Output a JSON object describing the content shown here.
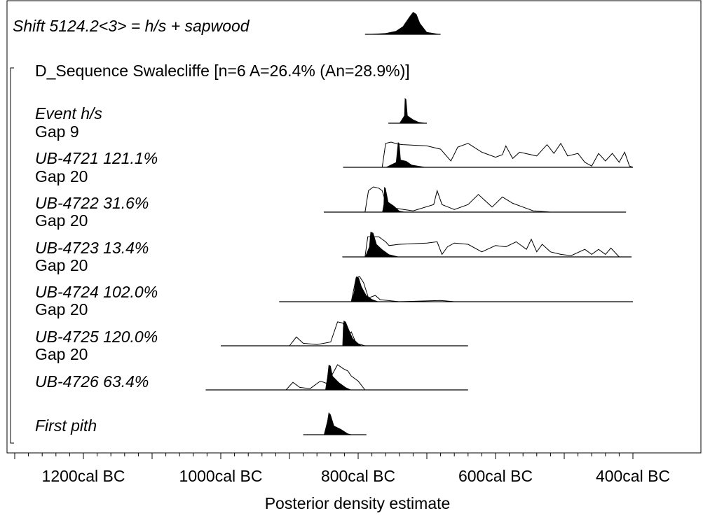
{
  "chart_data": {
    "type": "area",
    "title": "",
    "xlabel": "Posterior density estimate",
    "x_tick_labels": [
      "1200cal BC",
      "1000cal BC",
      "800cal BC",
      "600cal BC",
      "400cal BC"
    ],
    "x_ticks": [
      1200,
      1000,
      800,
      600,
      400
    ],
    "xlim": [
      1300,
      390
    ],
    "top_item": {
      "label": "Shift 5124.2<3> = h/s + sapwood",
      "italic": true,
      "posterior": [
        [
          680,
          0
        ],
        [
          700,
          0.1
        ],
        [
          710,
          0.5
        ],
        [
          715,
          0.9
        ],
        [
          720,
          1
        ],
        [
          725,
          0.8
        ],
        [
          735,
          0.35
        ],
        [
          745,
          0.15
        ],
        [
          760,
          0.05
        ],
        [
          790,
          0
        ]
      ]
    },
    "sequence_label": "D_Sequence Swalecliffe [n=6  A=26.4% (An=28.9%)]",
    "items": [
      {
        "label": "Event h/s",
        "italic": true,
        "gap": "Gap 9",
        "prior": null,
        "posterior": [
          [
            740,
            0
          ],
          [
            733,
            0.3
          ],
          [
            732,
            1
          ],
          [
            730,
            0.95
          ],
          [
            728,
            0.3
          ],
          [
            720,
            0.15
          ],
          [
            712,
            0.05
          ],
          [
            700,
            0
          ]
        ]
      },
      {
        "label": "UB-4721  121.1%",
        "italic": true,
        "gap": "Gap 20",
        "prior": [
          [
            765,
            0
          ],
          [
            760,
            0.95
          ],
          [
            752,
            1
          ],
          [
            742,
            0.92
          ],
          [
            735,
            0.9
          ],
          [
            700,
            0.85
          ],
          [
            680,
            0.72
          ],
          [
            665,
            0.25
          ],
          [
            655,
            0.8
          ],
          [
            640,
            0.95
          ],
          [
            620,
            0.6
          ],
          [
            600,
            0.4
          ],
          [
            590,
            0.5
          ],
          [
            585,
            0.85
          ],
          [
            575,
            0.35
          ],
          [
            565,
            0.6
          ],
          [
            540,
            0.45
          ],
          [
            525,
            0.9
          ],
          [
            515,
            0.55
          ],
          [
            505,
            0.95
          ],
          [
            495,
            0.45
          ],
          [
            480,
            0.55
          ],
          [
            470,
            0.2
          ],
          [
            460,
            0.05
          ],
          [
            450,
            0.55
          ],
          [
            440,
            0.25
          ],
          [
            430,
            0.55
          ],
          [
            420,
            0.2
          ],
          [
            412,
            0.6
          ],
          [
            405,
            0.05
          ],
          [
            400,
            0
          ]
        ],
        "posterior": [
          [
            760,
            0
          ],
          [
            745,
            0.2
          ],
          [
            742,
            1
          ],
          [
            740,
            0.95
          ],
          [
            738,
            0.3
          ],
          [
            730,
            0.25
          ],
          [
            722,
            0.1
          ],
          [
            700,
            0
          ]
        ]
      },
      {
        "label": "UB-4722   31.6%",
        "italic": true,
        "gap": "Gap 20",
        "prior": [
          [
            790,
            0
          ],
          [
            785,
            0.85
          ],
          [
            778,
            1
          ],
          [
            770,
            0.95
          ],
          [
            765,
            0.85
          ],
          [
            760,
            0.4
          ],
          [
            745,
            0.15
          ],
          [
            720,
            0.05
          ],
          [
            690,
            0.3
          ],
          [
            685,
            0.85
          ],
          [
            678,
            0.3
          ],
          [
            660,
            0.1
          ],
          [
            640,
            0.3
          ],
          [
            625,
            0.7
          ],
          [
            605,
            0.2
          ],
          [
            590,
            0.6
          ],
          [
            575,
            0.35
          ],
          [
            560,
            0.2
          ],
          [
            545,
            0.05
          ],
          [
            520,
            0
          ]
        ],
        "posterior": [
          [
            765,
            0
          ],
          [
            763,
            0.3
          ],
          [
            762,
            1
          ],
          [
            760,
            0.95
          ],
          [
            756,
            0.4
          ],
          [
            748,
            0.25
          ],
          [
            740,
            0.05
          ],
          [
            730,
            0
          ]
        ]
      },
      {
        "label": "UB-4723   13.4%",
        "italic": true,
        "gap": "Gap 20",
        "prior": [
          [
            790,
            0
          ],
          [
            786,
            0.8
          ],
          [
            770,
            0.8
          ],
          [
            760,
            0.6
          ],
          [
            755,
            0.45
          ],
          [
            740,
            0.5
          ],
          [
            700,
            0.55
          ],
          [
            685,
            0.6
          ],
          [
            678,
            0.1
          ],
          [
            670,
            0.4
          ],
          [
            660,
            0.55
          ],
          [
            640,
            0.5
          ],
          [
            620,
            0.2
          ],
          [
            600,
            0.45
          ],
          [
            585,
            0.4
          ],
          [
            570,
            0.6
          ],
          [
            555,
            0.3
          ],
          [
            548,
            0.7
          ],
          [
            540,
            0.2
          ],
          [
            532,
            0.5
          ],
          [
            520,
            0.2
          ],
          [
            505,
            0.1
          ],
          [
            490,
            0.05
          ],
          [
            470,
            0.3
          ],
          [
            460,
            0.1
          ],
          [
            450,
            0.3
          ],
          [
            440,
            0.1
          ],
          [
            432,
            0.35
          ],
          [
            420,
            0
          ]
        ],
        "posterior": [
          [
            790,
            0
          ],
          [
            784,
            0.4
          ],
          [
            782,
            1
          ],
          [
            778,
            0.95
          ],
          [
            773,
            0.5
          ],
          [
            765,
            0.3
          ],
          [
            755,
            0.1
          ],
          [
            740,
            0
          ]
        ]
      },
      {
        "label": "UB-4724  102.0%",
        "italic": true,
        "gap": "Gap 20",
        "prior": [
          [
            810,
            0
          ],
          [
            803,
            0.95
          ],
          [
            798,
            1
          ],
          [
            792,
            0.75
          ],
          [
            785,
            0.15
          ],
          [
            775,
            0.25
          ],
          [
            768,
            0.08
          ],
          [
            740,
            0
          ],
          [
            680,
            0.05
          ],
          [
            660,
            0
          ]
        ],
        "posterior": [
          [
            810,
            0
          ],
          [
            806,
            0.4
          ],
          [
            803,
            1
          ],
          [
            799,
            0.95
          ],
          [
            795,
            0.6
          ],
          [
            788,
            0.25
          ],
          [
            780,
            0.1
          ],
          [
            770,
            0
          ]
        ]
      },
      {
        "label": "UB-4725 120.0%",
        "italic": true,
        "gap": "Gap 20",
        "prior": [
          [
            900,
            0
          ],
          [
            890,
            0.35
          ],
          [
            880,
            0.1
          ],
          [
            860,
            0.05
          ],
          [
            840,
            0.15
          ],
          [
            830,
            0.95
          ],
          [
            822,
            0.9
          ],
          [
            815,
            0.35
          ],
          [
            810,
            0.55
          ],
          [
            803,
            0.1
          ],
          [
            790,
            0
          ]
        ],
        "posterior": [
          [
            823,
            0
          ],
          [
            822,
            0.7
          ],
          [
            821,
            1
          ],
          [
            818,
            0.95
          ],
          [
            815,
            0.75
          ],
          [
            808,
            0.3
          ],
          [
            800,
            0.1
          ],
          [
            795,
            0
          ]
        ]
      },
      {
        "label": "UB-4726   63.4%",
        "italic": true,
        "gap": null,
        "prior": [
          [
            905,
            0
          ],
          [
            895,
            0.3
          ],
          [
            885,
            0.1
          ],
          [
            870,
            0.05
          ],
          [
            855,
            0.35
          ],
          [
            845,
            0.25
          ],
          [
            838,
            0.6
          ],
          [
            830,
            1
          ],
          [
            822,
            0.85
          ],
          [
            815,
            0.75
          ],
          [
            810,
            0.55
          ],
          [
            800,
            0.35
          ],
          [
            790,
            0
          ]
        ],
        "posterior": [
          [
            848,
            0
          ],
          [
            845,
            0.5
          ],
          [
            843,
            1
          ],
          [
            840,
            0.95
          ],
          [
            837,
            0.55
          ],
          [
            828,
            0.3
          ],
          [
            818,
            0.1
          ],
          [
            810,
            0
          ]
        ]
      }
    ],
    "bottom_item": {
      "label": "First pith",
      "italic": true,
      "posterior": [
        [
          850,
          0
        ],
        [
          845,
          0.6
        ],
        [
          843,
          1
        ],
        [
          840,
          0.9
        ],
        [
          835,
          0.4
        ],
        [
          825,
          0.25
        ],
        [
          815,
          0.05
        ],
        [
          808,
          0
        ]
      ]
    },
    "line_ranges": [
      [
        680,
        790
      ],
      [
        700,
        756
      ],
      [
        400,
        822
      ],
      [
        410,
        850
      ],
      [
        402,
        823
      ],
      [
        400,
        915
      ],
      [
        640,
        1000
      ],
      [
        640,
        1022
      ]
    ],
    "bottom_line_range": [
      788,
      880
    ],
    "grid": false,
    "legend": "none"
  }
}
